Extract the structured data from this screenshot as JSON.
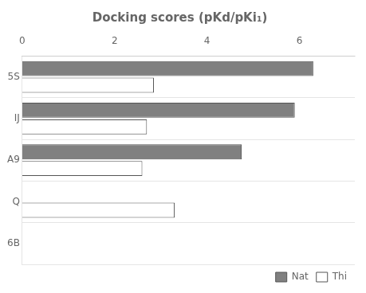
{
  "chart_data": {
    "type": "bar",
    "orientation": "horizontal",
    "title": "Docking scores (pKd/pKi₁)",
    "categories": [
      "5S",
      "IJ",
      "A9",
      "Q",
      "6B"
    ],
    "series": [
      {
        "name": "Nat",
        "color": "#808080",
        "values": [
          6.3,
          5.9,
          4.75,
          0.0,
          0.0
        ]
      },
      {
        "name": "Thi",
        "color": "#ffffff",
        "values": [
          2.85,
          2.7,
          2.6,
          3.3,
          0.0
        ]
      }
    ],
    "xlim": [
      0,
      7.2
    ],
    "xticks": [
      0,
      2,
      4,
      6
    ],
    "grid": false,
    "legend": "lower right"
  }
}
